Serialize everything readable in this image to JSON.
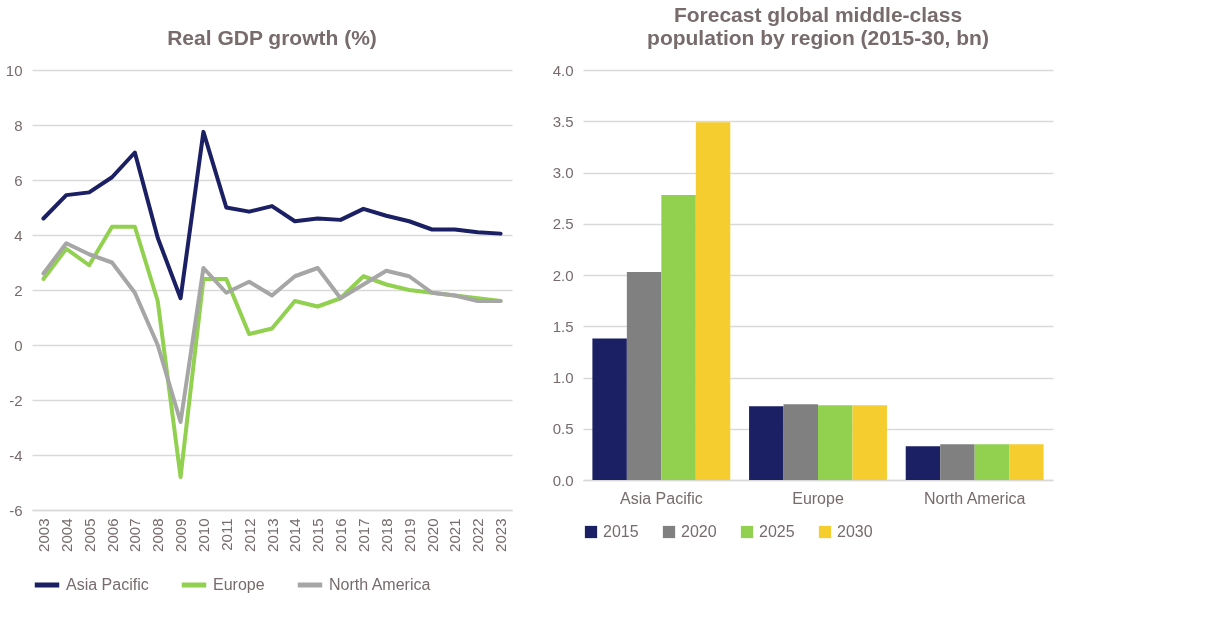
{
  "chart_data": [
    {
      "type": "line",
      "title": "Real GDP growth (%)",
      "categories": [
        "2003",
        "2004",
        "2005",
        "2006",
        "2007",
        "2008",
        "2009",
        "2010",
        "2011",
        "2012",
        "2013",
        "2014",
        "2015",
        "2016",
        "2017",
        "2018",
        "2019",
        "2020",
        "2021",
        "2022",
        "2023"
      ],
      "series": [
        {
          "name": "Asia Pacific",
          "color": "#1b1f63",
          "values": [
            4.6,
            5.45,
            5.55,
            6.1,
            7.0,
            3.9,
            1.7,
            7.75,
            5.0,
            4.85,
            5.05,
            4.5,
            4.6,
            4.55,
            4.95,
            4.7,
            4.5,
            4.2,
            4.2,
            4.1,
            4.05
          ]
        },
        {
          "name": "Europe",
          "color": "#92d050",
          "values": [
            2.4,
            3.5,
            2.9,
            4.3,
            4.3,
            1.6,
            -4.8,
            2.4,
            2.4,
            0.4,
            0.6,
            1.6,
            1.4,
            1.7,
            2.5,
            2.2,
            2.0,
            1.9,
            1.8,
            1.7,
            1.6
          ]
        },
        {
          "name": "North America",
          "color": "#a6a6a6",
          "values": [
            2.6,
            3.7,
            3.3,
            3.0,
            1.9,
            0.0,
            -2.8,
            2.8,
            1.9,
            2.3,
            1.8,
            2.5,
            2.8,
            1.7,
            2.2,
            2.7,
            2.5,
            1.9,
            1.8,
            1.6,
            1.6
          ]
        }
      ],
      "ylim": [
        -6,
        10
      ],
      "yticks": [
        -6,
        -4,
        -2,
        0,
        2,
        4,
        6,
        8,
        10
      ],
      "grid": "y",
      "legend": "bottom",
      "marker": "none",
      "line_style": "solid"
    },
    {
      "type": "bar",
      "title": "Forecast global middle-class population by region (2015-30, bn)",
      "categories": [
        "Asia Pacific",
        "Europe",
        "North America"
      ],
      "series": [
        {
          "name": "2015",
          "color": "#1b1f63",
          "values": [
            1.38,
            0.72,
            0.33
          ]
        },
        {
          "name": "2020",
          "color": "#808080",
          "values": [
            2.03,
            0.74,
            0.35
          ]
        },
        {
          "name": "2025",
          "color": "#92d050",
          "values": [
            2.78,
            0.73,
            0.35
          ]
        },
        {
          "name": "2030",
          "color": "#f5cd2f",
          "values": [
            3.49,
            0.73,
            0.35
          ]
        }
      ],
      "ylim": [
        0,
        4
      ],
      "yticks": [
        {
          "value": 0,
          "label": "0.0"
        },
        {
          "value": 0.5,
          "label": "0.5"
        },
        {
          "value": 1,
          "label": "1.0"
        },
        {
          "value": 1.5,
          "label": "1.5"
        },
        {
          "value": 2,
          "label": "2.0"
        },
        {
          "value": 2.5,
          "label": "2.5"
        },
        {
          "value": 3,
          "label": "3.0"
        },
        {
          "value": 3.5,
          "label": "3.5"
        },
        {
          "value": 4,
          "label": "4.0"
        }
      ],
      "grid": "y",
      "legend": "bottom"
    }
  ]
}
